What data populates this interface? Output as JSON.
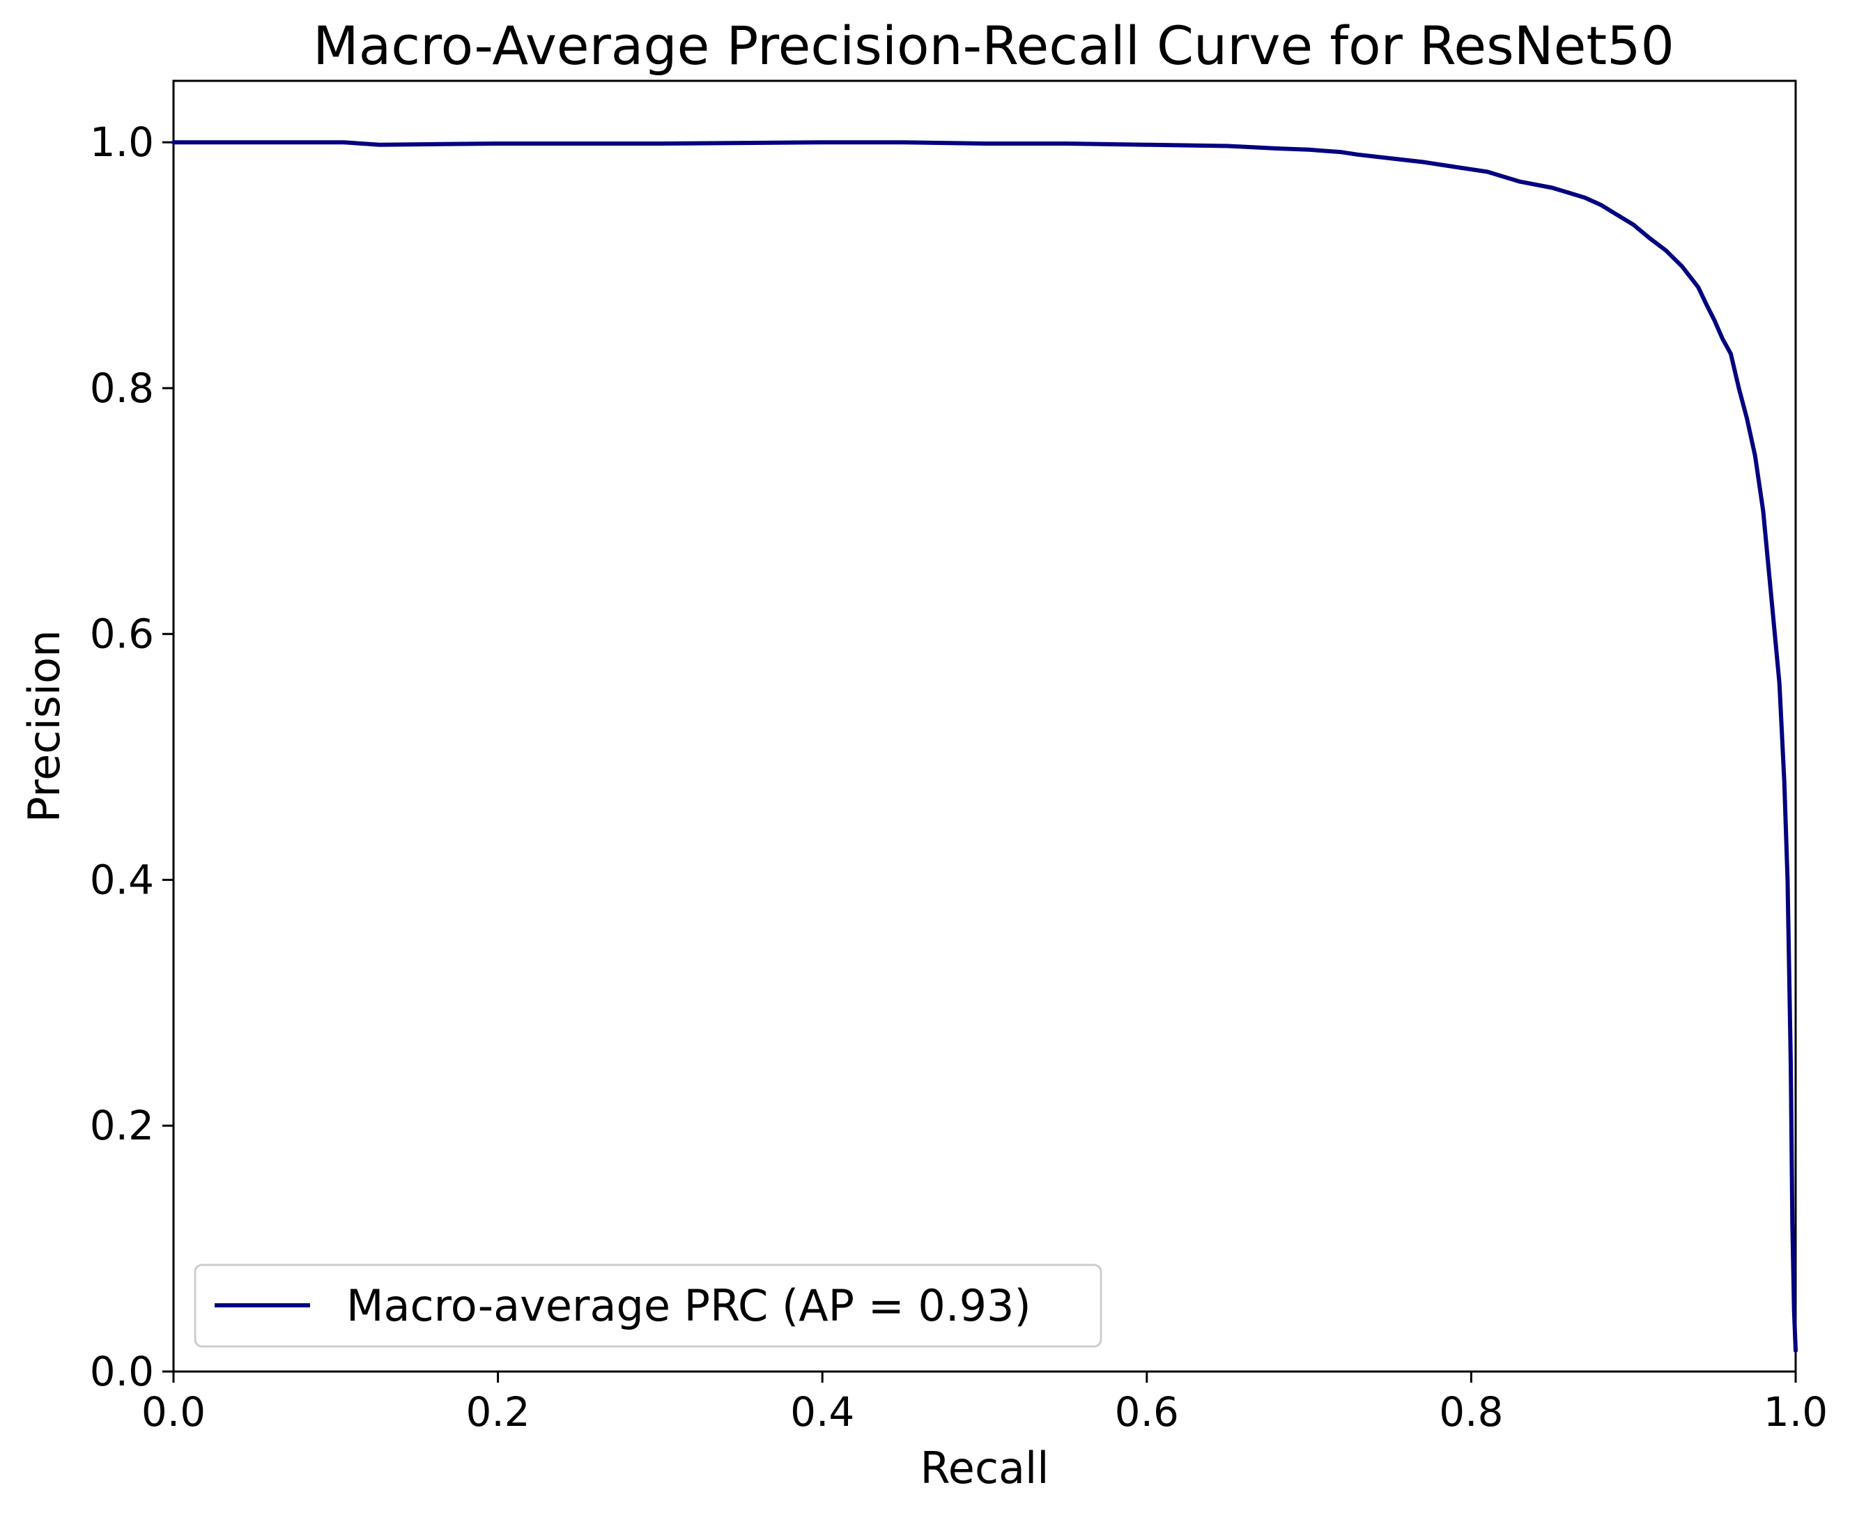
{
  "chart_data": {
    "type": "line",
    "title": "Macro-Average Precision-Recall Curve for ResNet50",
    "xlabel": "Recall",
    "ylabel": "Precision",
    "xlim": [
      0.0,
      1.0
    ],
    "ylim": [
      0.0,
      1.05
    ],
    "xticks": [
      "0.0",
      "0.2",
      "0.4",
      "0.6",
      "0.8",
      "1.0"
    ],
    "yticks": [
      "0.0",
      "0.2",
      "0.4",
      "0.6",
      "0.8",
      "1.0"
    ],
    "grid": false,
    "legend_position": "lower-left",
    "series": [
      {
        "name": "Macro-average PRC (AP = 0.93)",
        "color": "#000080",
        "points": [
          [
            0.0,
            1.0
          ],
          [
            0.105,
            1.0
          ],
          [
            0.127,
            0.998
          ],
          [
            0.2,
            0.999
          ],
          [
            0.3,
            0.999
          ],
          [
            0.4,
            1.0
          ],
          [
            0.45,
            1.0
          ],
          [
            0.5,
            0.999
          ],
          [
            0.55,
            0.999
          ],
          [
            0.6,
            0.998
          ],
          [
            0.65,
            0.997
          ],
          [
            0.68,
            0.995
          ],
          [
            0.7,
            0.994
          ],
          [
            0.72,
            0.992
          ],
          [
            0.73,
            0.99
          ],
          [
            0.75,
            0.987
          ],
          [
            0.77,
            0.984
          ],
          [
            0.79,
            0.98
          ],
          [
            0.81,
            0.976
          ],
          [
            0.82,
            0.972
          ],
          [
            0.83,
            0.968
          ],
          [
            0.85,
            0.963
          ],
          [
            0.86,
            0.959
          ],
          [
            0.87,
            0.955
          ],
          [
            0.88,
            0.949
          ],
          [
            0.89,
            0.941
          ],
          [
            0.9,
            0.933
          ],
          [
            0.91,
            0.922
          ],
          [
            0.92,
            0.912
          ],
          [
            0.93,
            0.899
          ],
          [
            0.94,
            0.882
          ],
          [
            0.945,
            0.868
          ],
          [
            0.95,
            0.855
          ],
          [
            0.955,
            0.84
          ],
          [
            0.96,
            0.828
          ],
          [
            0.965,
            0.8
          ],
          [
            0.97,
            0.775
          ],
          [
            0.975,
            0.745
          ],
          [
            0.98,
            0.7
          ],
          [
            0.985,
            0.63
          ],
          [
            0.99,
            0.56
          ],
          [
            0.993,
            0.48
          ],
          [
            0.995,
            0.4
          ],
          [
            0.997,
            0.25
          ],
          [
            0.998,
            0.12
          ],
          [
            0.999,
            0.05
          ],
          [
            1.0,
            0.017
          ]
        ]
      }
    ]
  }
}
